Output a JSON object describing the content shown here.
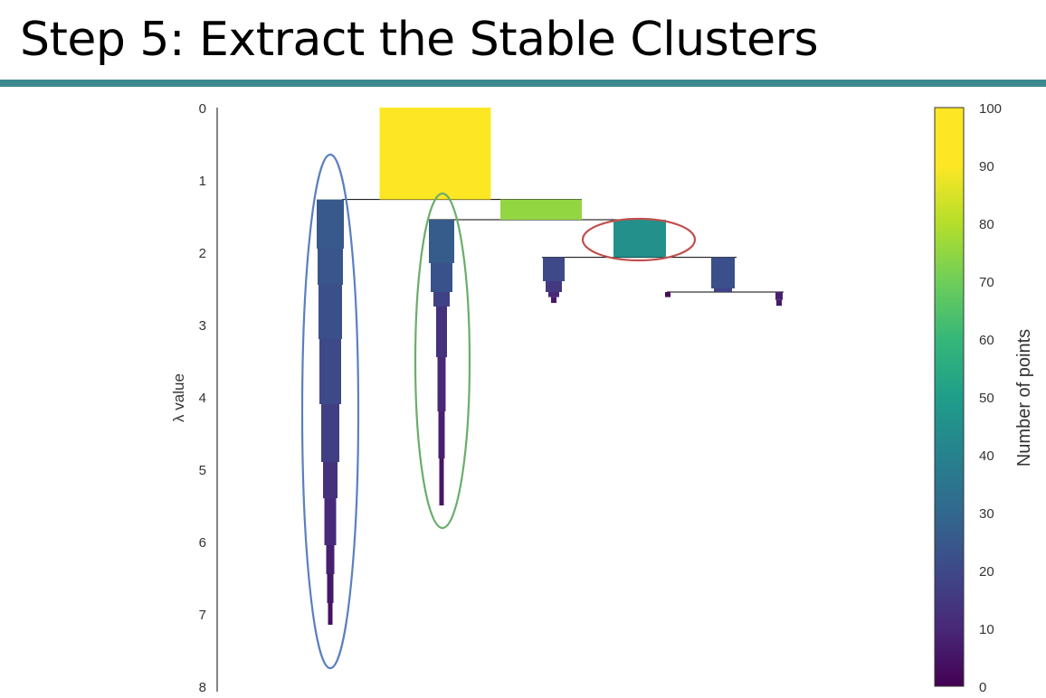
{
  "slide": {
    "title": "Step 5: Extract the Stable Clusters"
  },
  "colors": {
    "title_rule": "#3d8a8e",
    "selected_cluster_ellipses": [
      "#5b7fc0",
      "#6aad6a",
      "#c0504d"
    ]
  },
  "chart_data": {
    "type": "condensed_tree",
    "ylabel": "λ value",
    "ylim": [
      0,
      8
    ],
    "y_inverted": true,
    "y_ticks": [
      "0",
      "1",
      "2",
      "3",
      "4",
      "5",
      "6",
      "7",
      "8"
    ],
    "colorbar": {
      "label": "Number of points",
      "range": [
        0,
        100
      ],
      "ticks": [
        "0",
        "10",
        "20",
        "30",
        "40",
        "50",
        "60",
        "70",
        "80",
        "90",
        "100"
      ],
      "colormap": "viridis"
    },
    "clusters": [
      {
        "id": "root",
        "lambda_birth": 0.0,
        "lambda_death": 1.27,
        "points": 100
      },
      {
        "id": "A",
        "parent": "root",
        "lambda_birth": 1.27,
        "lambda_death": 7.15,
        "points_start": 25,
        "selected": true
      },
      {
        "id": "B",
        "parent": "root",
        "lambda_birth": 1.27,
        "lambda_death": 1.55,
        "points": 75
      },
      {
        "id": "C",
        "parent": "B",
        "lambda_birth": 1.55,
        "lambda_death": 5.5,
        "points_start": 26,
        "selected": true
      },
      {
        "id": "D",
        "parent": "B",
        "lambda_birth": 1.55,
        "lambda_death": 2.07,
        "points": 45,
        "selected": true
      },
      {
        "id": "E",
        "parent": "D",
        "lambda_birth": 2.07,
        "lambda_death": 2.7,
        "points_start": 20
      },
      {
        "id": "F",
        "parent": "D",
        "lambda_birth": 2.07,
        "lambda_death": 2.55,
        "points_start": 22
      },
      {
        "id": "G",
        "parent": "F",
        "lambda_birth": 2.55,
        "lambda_death": 2.62,
        "points_start": 3
      },
      {
        "id": "H",
        "parent": "F",
        "lambda_birth": 2.55,
        "lambda_death": 2.74,
        "points_start": 8
      }
    ]
  }
}
